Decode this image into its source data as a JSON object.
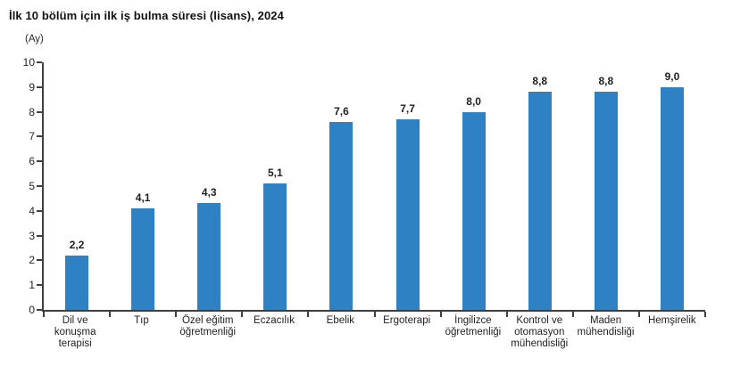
{
  "title": "İlk 10 bölüm için ilk iş bulma süresi (lisans), 2024",
  "colors": {
    "bar": "#2e81c3",
    "axis": "#3f3f3f"
  },
  "chart_data": {
    "type": "bar",
    "title": "İlk 10 bölüm için ilk iş bulma süresi (lisans), 2024",
    "ylabel": "(Ay)",
    "xlabel": "",
    "ylim": [
      0,
      10
    ],
    "yticks": [
      0,
      1,
      2,
      3,
      4,
      5,
      6,
      7,
      8,
      9,
      10
    ],
    "grid": false,
    "legend_position": "none",
    "categories": [
      "Dil ve konuşma terapisi",
      "Tıp",
      "Özel eğitim öğretmenliği",
      "Eczacılık",
      "Ebelik",
      "Ergoterapi",
      "İngilizce öğretmenliği",
      "Kontrol ve otomasyon mühendisliği",
      "Maden mühendisliği",
      "Hemşirelik"
    ],
    "values": [
      2.2,
      4.1,
      4.3,
      5.1,
      7.6,
      7.7,
      8.0,
      8.8,
      8.8,
      9.0
    ],
    "value_labels": [
      "2,2",
      "4,1",
      "4,3",
      "5,1",
      "7,6",
      "7,7",
      "8,0",
      "8,8",
      "8,8",
      "9,0"
    ]
  }
}
